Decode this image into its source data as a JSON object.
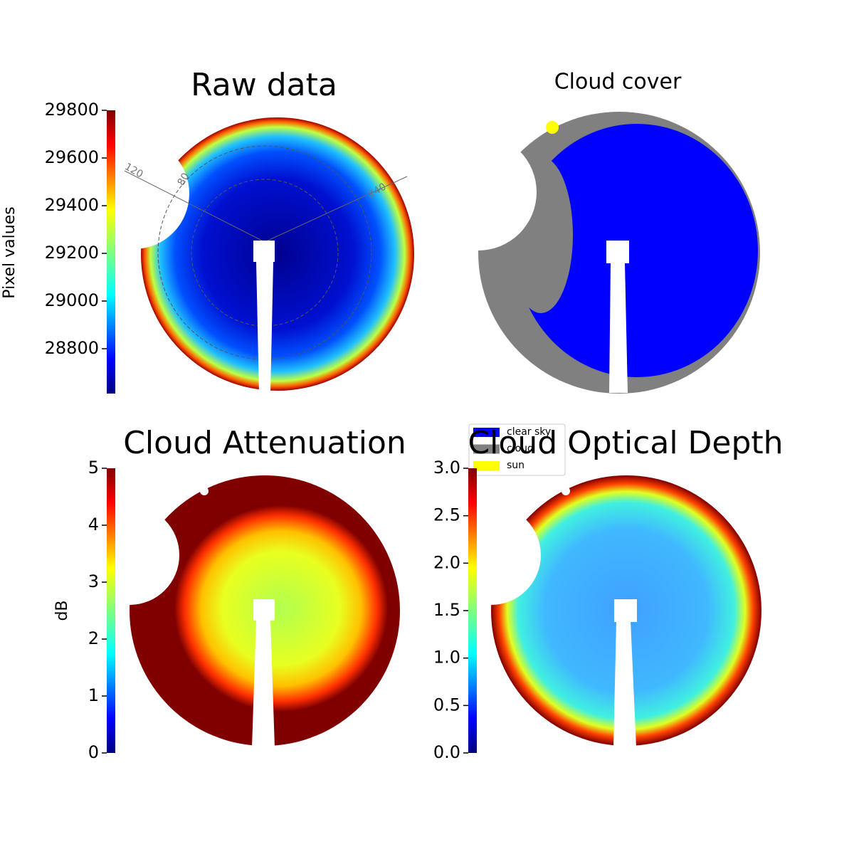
{
  "chart_data": [
    {
      "type": "image",
      "title": "Raw data",
      "ylabel": "Pixel values",
      "ylim": [
        28612,
        29800
      ],
      "yticks": [
        28800,
        29000,
        29200,
        29400,
        29600,
        29800
      ],
      "annotations": [
        "120",
        "80",
        "240"
      ]
    },
    {
      "type": "image",
      "title": "Cloud cover",
      "series": [
        {
          "name": "clear sky",
          "color": "#0000ff"
        },
        {
          "name": "cloud",
          "color": "#808080"
        },
        {
          "name": "sun",
          "color": "#ffff00"
        }
      ]
    },
    {
      "type": "image",
      "title": "Cloud Attenuation",
      "ylabel": "dB",
      "ylim": [
        0,
        5
      ],
      "yticks": [
        0,
        1,
        2,
        3,
        4,
        5
      ]
    },
    {
      "type": "image",
      "title": "Cloud Optical Depth",
      "ylim": [
        0,
        3
      ],
      "yticks": [
        {
          "value": 0,
          "label": "0.0"
        },
        0.5,
        {
          "value": 1,
          "label": "1.0"
        },
        1.5,
        {
          "value": 2,
          "label": "2.0"
        },
        2.5,
        {
          "value": 3,
          "label": "3.0"
        }
      ]
    }
  ]
}
